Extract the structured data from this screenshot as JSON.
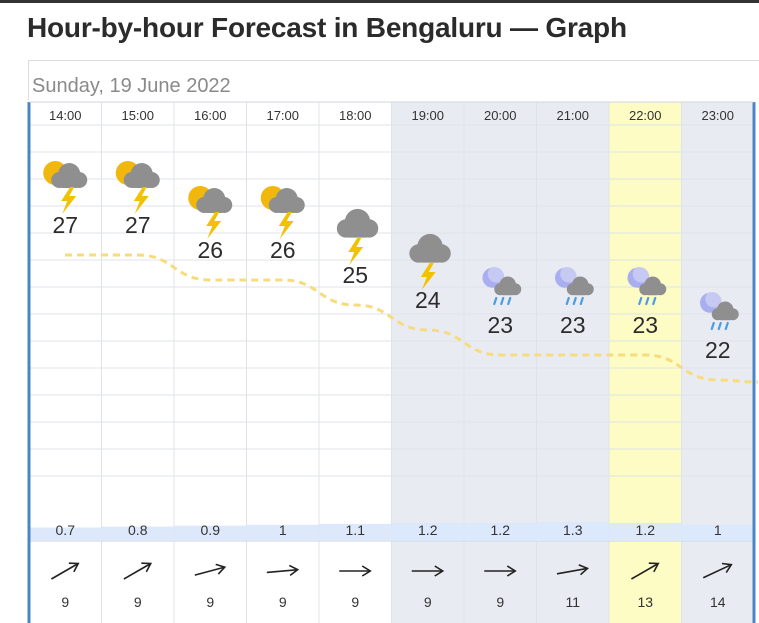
{
  "page_title": "Hour-by-hour Forecast in Bengaluru — Graph",
  "date_label": "Sunday, 19 June 2022",
  "colors": {
    "night_band": "#e9ebf3",
    "highlight_band": "#fdfcc5",
    "border": "#4a86c5",
    "temperature_line": "#f6dc7c",
    "precip_band": "#dbe8fb",
    "gridline": "#dfe3e8"
  },
  "chart_data": {
    "type": "line",
    "x": [
      "14:00",
      "15:00",
      "16:00",
      "17:00",
      "18:00",
      "19:00",
      "20:00",
      "21:00",
      "22:00",
      "23:00"
    ],
    "series": [
      {
        "values": [
          27,
          27,
          26,
          26,
          25,
          24,
          23,
          23,
          23,
          22
        ]
      }
    ],
    "precipitation": [
      0.7,
      0.8,
      0.9,
      1,
      1.1,
      1.2,
      1.2,
      1.3,
      1.2,
      1
    ],
    "wind_speed": [
      9,
      9,
      9,
      9,
      9,
      9,
      9,
      11,
      13,
      14
    ],
    "wind_direction_deg": [
      330,
      330,
      345,
      355,
      0,
      0,
      0,
      350,
      330,
      335
    ],
    "icons": [
      "thunder-sun-icon",
      "thunder-sun-icon",
      "thunder-sun-icon",
      "thunder-sun-icon",
      "thunder-cloud-icon",
      "thunder-cloud-icon",
      "rain-moon-icon",
      "rain-moon-icon",
      "rain-moon-icon",
      "rain-moon-icon"
    ],
    "night_from_index": 5,
    "highlight_index": 8,
    "grid": true
  }
}
